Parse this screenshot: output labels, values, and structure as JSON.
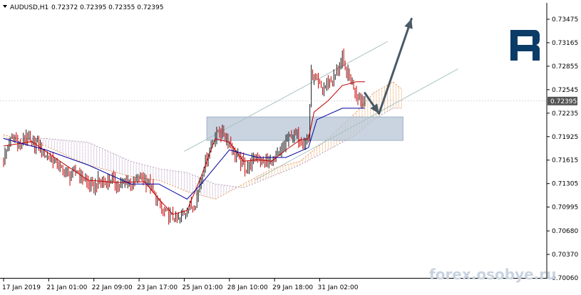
{
  "header": {
    "dropdown_icon": "triangle-down-icon",
    "symbol": "AUDUSD,H1",
    "ohlc": "0.72372 0.72395 0.72355 0.72395"
  },
  "logo": {
    "icon": "roboforex-r-logo-icon"
  },
  "watermark": "forex.osobye.ru",
  "colors": {
    "candle_up": "#1a1a1a",
    "candle_down": "#cc0000",
    "tenkan": "#c00000",
    "kijun": "#0000a0",
    "cloud_up": "#e8a060",
    "cloud_down": "#b8a0c0",
    "channel": "#a9c2c2",
    "zone": "#b7c6d6",
    "arrow": "#4a5a66",
    "price_tag": "#555555"
  },
  "chart_data": {
    "type": "candlestick",
    "symbol": "AUDUSD",
    "timeframe": "H1",
    "ylim": [
      0.7006,
      0.736
    ],
    "y_ticks": [
      "0.73475",
      "0.73165",
      "0.72855",
      "0.72545",
      "0.72235",
      "0.71925",
      "0.71615",
      "0.71305",
      "0.70995",
      "0.70680",
      "0.70370",
      "0.70060"
    ],
    "x_ticks": [
      "17 Jan 2019",
      "21 Jan 01:00",
      "22 Jan 09:00",
      "23 Jan 17:00",
      "25 Jan 01:00",
      "28 Jan 10:00",
      "29 Jan 18:00",
      "31 Jan 02:00"
    ],
    "x_tick_bars": [
      0,
      32,
      64,
      96,
      128,
      160,
      192,
      224
    ],
    "current_price": "0.72395",
    "close_path": [
      [
        0,
        0.7162
      ],
      [
        4,
        0.7185
      ],
      [
        8,
        0.719
      ],
      [
        12,
        0.7178
      ],
      [
        16,
        0.7195
      ],
      [
        20,
        0.718
      ],
      [
        24,
        0.7185
      ],
      [
        28,
        0.717
      ],
      [
        32,
        0.7165
      ],
      [
        36,
        0.716
      ],
      [
        40,
        0.715
      ],
      [
        44,
        0.7145
      ],
      [
        48,
        0.714
      ],
      [
        52,
        0.7148
      ],
      [
        56,
        0.7138
      ],
      [
        60,
        0.713
      ],
      [
        64,
        0.7125
      ],
      [
        68,
        0.7135
      ],
      [
        72,
        0.713
      ],
      [
        76,
        0.7138
      ],
      [
        80,
        0.713
      ],
      [
        84,
        0.7128
      ],
      [
        88,
        0.7135
      ],
      [
        92,
        0.713
      ],
      [
        96,
        0.714
      ],
      [
        100,
        0.7135
      ],
      [
        104,
        0.7128
      ],
      [
        108,
        0.711
      ],
      [
        112,
        0.7095
      ],
      [
        116,
        0.709
      ],
      [
        120,
        0.7085
      ],
      [
        124,
        0.7082
      ],
      [
        128,
        0.7092
      ],
      [
        132,
        0.71
      ],
      [
        136,
        0.7105
      ],
      [
        140,
        0.714
      ],
      [
        144,
        0.7165
      ],
      [
        148,
        0.7185
      ],
      [
        152,
        0.72
      ],
      [
        156,
        0.7195
      ],
      [
        160,
        0.7185
      ],
      [
        164,
        0.717
      ],
      [
        168,
        0.716
      ],
      [
        172,
        0.715
      ],
      [
        176,
        0.716
      ],
      [
        180,
        0.7165
      ],
      [
        184,
        0.716
      ],
      [
        188,
        0.7158
      ],
      [
        192,
        0.7162
      ],
      [
        196,
        0.717
      ],
      [
        200,
        0.7185
      ],
      [
        204,
        0.7195
      ],
      [
        208,
        0.7192
      ],
      [
        212,
        0.7185
      ],
      [
        216,
        0.719
      ],
      [
        218,
        0.7275
      ],
      [
        222,
        0.7262
      ],
      [
        226,
        0.7255
      ],
      [
        230,
        0.7265
      ],
      [
        234,
        0.727
      ],
      [
        238,
        0.7285
      ],
      [
        240,
        0.7295
      ],
      [
        242,
        0.728
      ],
      [
        246,
        0.7268
      ],
      [
        250,
        0.725
      ],
      [
        254,
        0.724
      ],
      [
        256,
        0.72395
      ]
    ],
    "tenkan_path": [
      [
        0,
        0.718
      ],
      [
        20,
        0.7186
      ],
      [
        40,
        0.716
      ],
      [
        60,
        0.7135
      ],
      [
        80,
        0.7132
      ],
      [
        100,
        0.7133
      ],
      [
        110,
        0.711
      ],
      [
        120,
        0.709
      ],
      [
        130,
        0.7095
      ],
      [
        140,
        0.714
      ],
      [
        150,
        0.719
      ],
      [
        160,
        0.7185
      ],
      [
        170,
        0.716
      ],
      [
        180,
        0.7162
      ],
      [
        190,
        0.716
      ],
      [
        200,
        0.7175
      ],
      [
        210,
        0.7188
      ],
      [
        216,
        0.719
      ],
      [
        220,
        0.7225
      ],
      [
        230,
        0.724
      ],
      [
        240,
        0.726
      ],
      [
        250,
        0.7265
      ],
      [
        256,
        0.7265
      ]
    ],
    "kijun_path": [
      [
        0,
        0.719
      ],
      [
        30,
        0.7175
      ],
      [
        60,
        0.7155
      ],
      [
        90,
        0.713
      ],
      [
        110,
        0.713
      ],
      [
        130,
        0.711
      ],
      [
        140,
        0.713
      ],
      [
        160,
        0.7175
      ],
      [
        180,
        0.7165
      ],
      [
        200,
        0.7165
      ],
      [
        216,
        0.7178
      ],
      [
        222,
        0.7215
      ],
      [
        240,
        0.723
      ],
      [
        256,
        0.723
      ]
    ],
    "span_a_path": [
      [
        0,
        0.7195
      ],
      [
        30,
        0.718
      ],
      [
        60,
        0.7155
      ],
      [
        90,
        0.714
      ],
      [
        110,
        0.7135
      ],
      [
        130,
        0.712
      ],
      [
        150,
        0.711
      ],
      [
        170,
        0.713
      ],
      [
        190,
        0.715
      ],
      [
        210,
        0.716
      ],
      [
        230,
        0.719
      ],
      [
        250,
        0.7225
      ],
      [
        262,
        0.725
      ],
      [
        276,
        0.7265
      ],
      [
        282,
        0.7255
      ]
    ],
    "span_b_path": [
      [
        0,
        0.719
      ],
      [
        30,
        0.719
      ],
      [
        60,
        0.7185
      ],
      [
        90,
        0.716
      ],
      [
        110,
        0.715
      ],
      [
        130,
        0.7145
      ],
      [
        150,
        0.713
      ],
      [
        170,
        0.7125
      ],
      [
        190,
        0.714
      ],
      [
        210,
        0.7155
      ],
      [
        230,
        0.7175
      ],
      [
        250,
        0.7195
      ],
      [
        262,
        0.7215
      ],
      [
        276,
        0.723
      ],
      [
        282,
        0.723
      ]
    ],
    "zone": {
      "x_from": 144,
      "x_to": 283,
      "y_low": 0.71875,
      "y_high": 0.72185
    },
    "channel_upper": [
      [
        128,
        0.7173
      ],
      [
        272,
        0.7318
      ]
    ],
    "channel_lower": [
      [
        178,
        0.7135
      ],
      [
        322,
        0.7282
      ]
    ],
    "arrow_down": [
      [
        256,
        0.725
      ],
      [
        266,
        0.7223
      ]
    ],
    "arrow_up": [
      [
        266,
        0.7223
      ],
      [
        289,
        0.7348
      ]
    ]
  }
}
